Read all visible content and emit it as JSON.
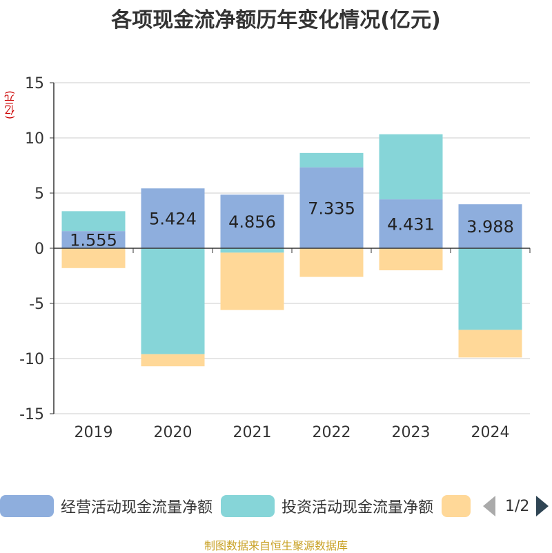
{
  "title": "各项现金流净额历年变化情况(亿元)",
  "unit_label": "(亿元)",
  "source": "制图数据来自恒生聚源数据库",
  "legend": {
    "items": [
      {
        "label": "经营活动现金流量净额",
        "color": "#8eaedd"
      },
      {
        "label": "投资活动现金流量净额",
        "color": "#86d5d8"
      },
      {
        "label": "",
        "color": "#ffd898"
      }
    ],
    "pager": "1/2"
  },
  "chart_data": {
    "type": "bar",
    "stacked": true,
    "title": "各项现金流净额历年变化情况(亿元)",
    "ylabel": "(亿元)",
    "xlabel": "",
    "categories": [
      "2019",
      "2020",
      "2021",
      "2022",
      "2023",
      "2024"
    ],
    "ylim": [
      -15,
      15
    ],
    "yticks": [
      15,
      10,
      5,
      0,
      -5,
      -10,
      -15
    ],
    "ytick_labels": [
      "15",
      "10",
      "5",
      "0",
      "-5",
      "-10",
      "-15"
    ],
    "grid": true,
    "series": [
      {
        "name": "经营活动现金流量净额",
        "color": "#8eaedd",
        "values": [
          1.555,
          5.424,
          4.856,
          7.335,
          4.431,
          3.988
        ],
        "labels": [
          "1.555",
          "5.424",
          "4.856",
          "7.335",
          "4.431",
          "3.988"
        ]
      },
      {
        "name": "投资活动现金流量净额",
        "color": "#86d5d8",
        "values": [
          1.8,
          -9.6,
          -0.4,
          1.3,
          5.9,
          -7.4
        ]
      },
      {
        "name": "",
        "color": "#ffd898",
        "values": [
          -1.8,
          -1.1,
          -5.2,
          -2.6,
          -2.0,
          -2.5
        ]
      }
    ]
  }
}
